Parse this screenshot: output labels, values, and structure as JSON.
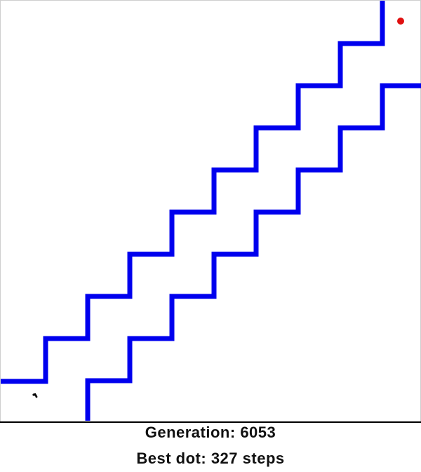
{
  "stats": {
    "generation_label": "Generation:",
    "generation_value": "6053",
    "best_label": "Best dot:",
    "best_steps": "327",
    "best_unit": "steps"
  },
  "colors": {
    "wall": "#0000ee",
    "goal": "#e01010",
    "background": "#ffffff",
    "dot": "#000000",
    "divider": "#000000"
  },
  "scene": {
    "walls": "blue staircase corridor walls",
    "goal": "red goal dot",
    "dots": "black population dots"
  }
}
